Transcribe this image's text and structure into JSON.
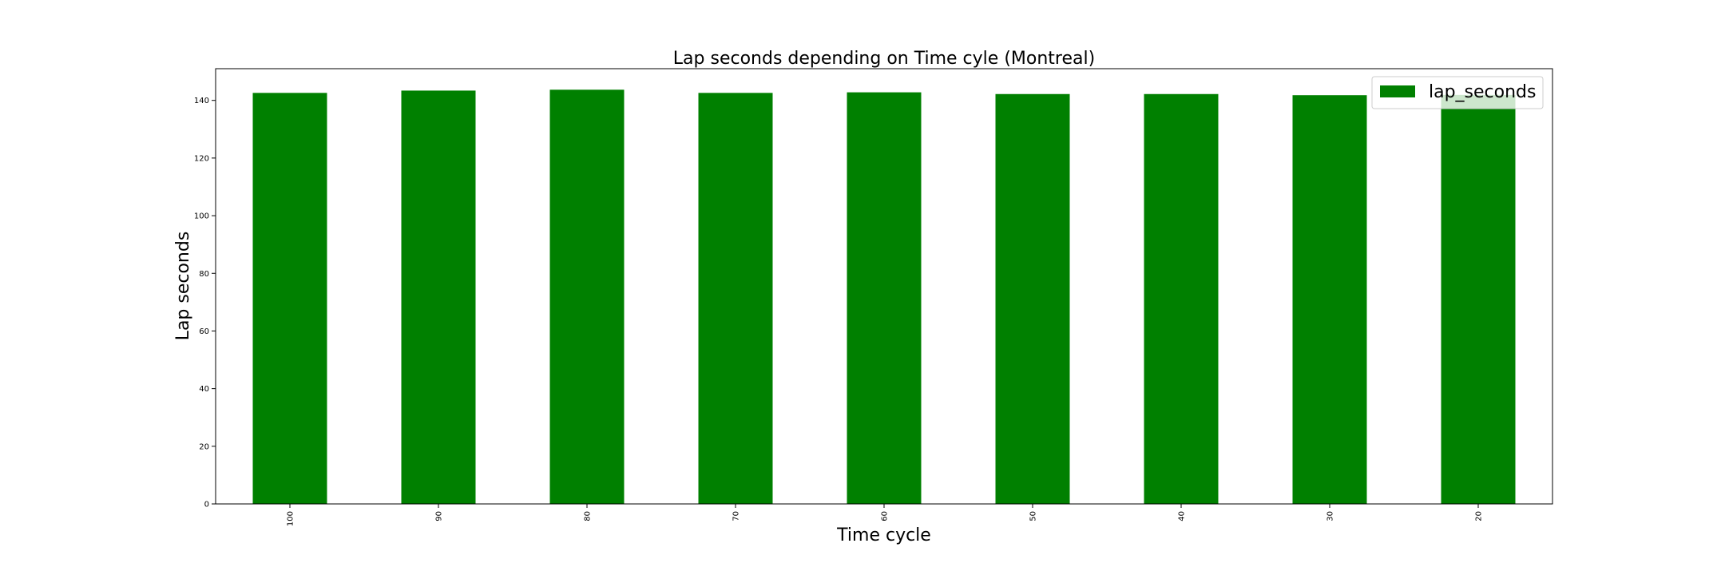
{
  "chart_data": {
    "type": "bar",
    "title": "Lap seconds depending on Time cyle (Montreal)",
    "xlabel": "Time cycle",
    "ylabel": "Lap seconds",
    "categories": [
      "100",
      "90",
      "80",
      "70",
      "60",
      "50",
      "40",
      "30",
      "20"
    ],
    "series": [
      {
        "name": "lap_seconds",
        "color": "#008000",
        "values": [
          142.6,
          143.4,
          143.7,
          142.6,
          142.8,
          142.2,
          142.2,
          141.8,
          141.9
        ]
      }
    ],
    "ylim": [
      0,
      151
    ],
    "yticks": [
      0,
      20,
      40,
      60,
      80,
      100,
      120,
      140
    ],
    "grid": false,
    "legend_position": "top-right"
  }
}
